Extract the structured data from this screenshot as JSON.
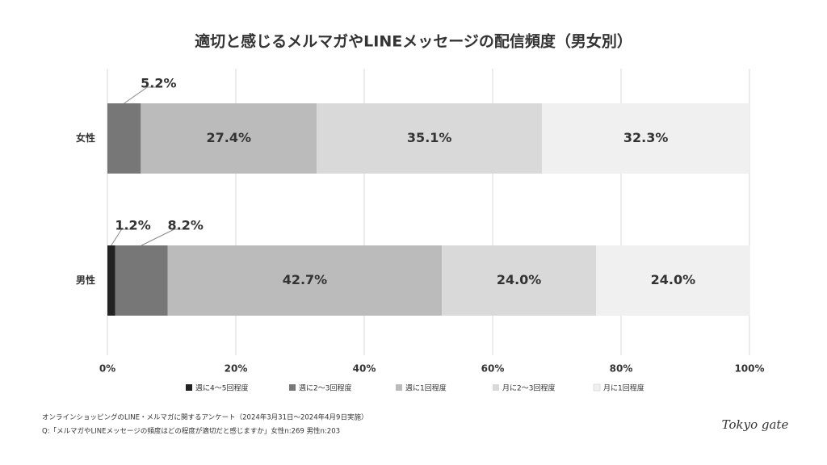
{
  "chart_data": {
    "type": "stacked-bar-horizontal",
    "title": "適切と感じるメルマガやLINEメッセージの配信頻度（男女別）",
    "categories": [
      "女性",
      "男性"
    ],
    "series": [
      {
        "name": "週に4〜5回程度",
        "color": "#222222",
        "values": [
          0,
          1.2
        ],
        "value_labels": [
          null,
          "1.2%"
        ]
      },
      {
        "name": "週に2〜3回程度",
        "color": "#777777",
        "values": [
          5.2,
          8.2
        ],
        "value_labels": [
          "5.2%",
          "8.2%"
        ]
      },
      {
        "name": "週に1回程度",
        "color": "#bbbbbb",
        "values": [
          27.4,
          42.7
        ],
        "value_labels": [
          "27.4%",
          "42.7%"
        ]
      },
      {
        "name": "月に2〜3回程度",
        "color": "#d9d9d9",
        "values": [
          35.1,
          24.0
        ],
        "value_labels": [
          "35.1%",
          "24.0%"
        ]
      },
      {
        "name": "月に1回程度",
        "color": "#f0f0f0",
        "values": [
          32.3,
          24.0
        ],
        "value_labels": [
          "32.3%",
          "24.0%"
        ]
      }
    ],
    "xlim": [
      0,
      100
    ],
    "xticks": [
      {
        "value": 0,
        "label": "0%"
      },
      {
        "value": 20,
        "label": "20%"
      },
      {
        "value": 40,
        "label": "40%"
      },
      {
        "value": 60,
        "label": "60%"
      },
      {
        "value": 80,
        "label": "80%"
      },
      {
        "value": 100,
        "label": "100%"
      }
    ],
    "grid": true,
    "legend": "bottom",
    "footnotes": [
      "オンラインショッピングのLINE・メルマガに関するアンケート（2024年3月31日〜2024年4月9日実施）",
      "Q:「メルマガやLINEメッセージの頻度はどの程度が適切だと感じますか」女性n:269 男性n:203"
    ],
    "logo": "Tokyo gate"
  }
}
